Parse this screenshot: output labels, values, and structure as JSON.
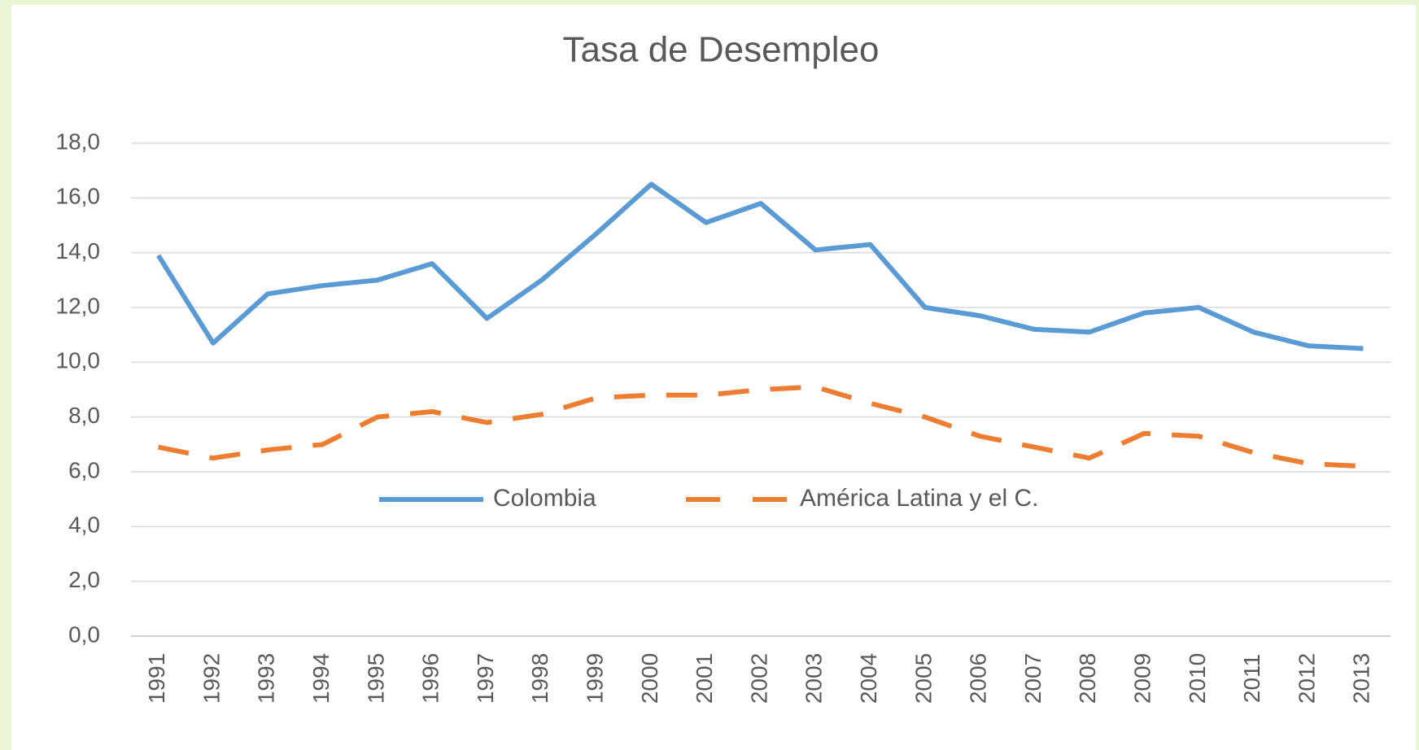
{
  "chart_data": {
    "type": "line",
    "title": "Tasa de Desempleo",
    "categories": [
      "1991",
      "1992",
      "1993",
      "1994",
      "1995",
      "1996",
      "1997",
      "1998",
      "1999",
      "2000",
      "2001",
      "2002",
      "2003",
      "2004",
      "2005",
      "2006",
      "2007",
      "2008",
      "2009",
      "2010",
      "2011",
      "2012",
      "2013"
    ],
    "series": [
      {
        "name": "Colombia",
        "color": "#5b9bd5",
        "dashed": false,
        "values": [
          13.9,
          10.7,
          12.5,
          12.8,
          13.0,
          13.6,
          11.6,
          13.0,
          14.7,
          16.5,
          15.1,
          15.8,
          14.1,
          14.3,
          12.0,
          11.7,
          11.2,
          11.1,
          11.8,
          12.0,
          11.1,
          10.6,
          10.5
        ]
      },
      {
        "name": "América Latina y el C.",
        "color": "#ed7d31",
        "dashed": true,
        "values": [
          6.9,
          6.5,
          6.8,
          7.0,
          8.0,
          8.2,
          7.8,
          8.1,
          8.7,
          8.8,
          8.8,
          9.0,
          9.1,
          8.5,
          8.0,
          7.3,
          6.9,
          6.5,
          7.4,
          7.3,
          6.7,
          6.3,
          6.2
        ]
      }
    ],
    "ylim": [
      0,
      18
    ],
    "yticks": [
      {
        "value": 0,
        "label": "0,0"
      },
      {
        "value": 2,
        "label": "2,0"
      },
      {
        "value": 4,
        "label": "4,0"
      },
      {
        "value": 6,
        "label": "6,0"
      },
      {
        "value": 8,
        "label": "8,0"
      },
      {
        "value": 10,
        "label": "10,0"
      },
      {
        "value": 12,
        "label": "12,0"
      },
      {
        "value": 14,
        "label": "14,0"
      },
      {
        "value": 16,
        "label": "16,0"
      },
      {
        "value": 18,
        "label": "18,0"
      }
    ],
    "grid": true,
    "legend": "inside"
  }
}
